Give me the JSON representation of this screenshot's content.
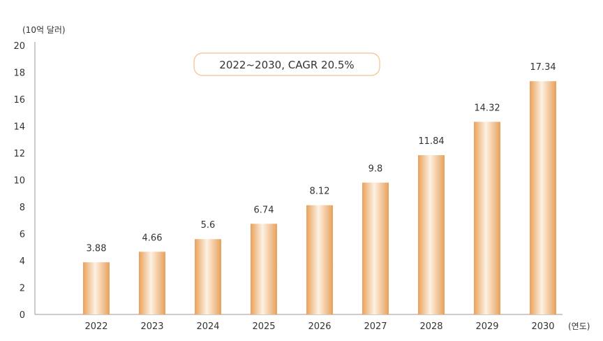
{
  "chart_data": {
    "type": "bar",
    "categories": [
      "2022",
      "2023",
      "2024",
      "2025",
      "2026",
      "2027",
      "2028",
      "2029",
      "2030"
    ],
    "values": [
      3.88,
      4.66,
      5.6,
      6.74,
      8.12,
      9.8,
      11.84,
      14.32,
      17.34
    ],
    "value_labels": [
      "3.88",
      "4.66",
      "5.6",
      "6.74",
      "8.12",
      "9.8",
      "11.84",
      "14.32",
      "17.34"
    ],
    "y_unit_label": "(10억 달러)",
    "x_unit_label": "(연도)",
    "annotation": "2022~2030, CAGR 20.5%",
    "ylim": [
      0,
      20
    ],
    "yticks": [
      0,
      2,
      4,
      6,
      8,
      10,
      12,
      14,
      16,
      18,
      20
    ],
    "grid": false,
    "legend": "none",
    "colors": {
      "bar_edge": "#E8A05A",
      "bar_center": "#FDF1E4",
      "axis": "#999999",
      "annotation_border": "#F2C28C"
    }
  }
}
